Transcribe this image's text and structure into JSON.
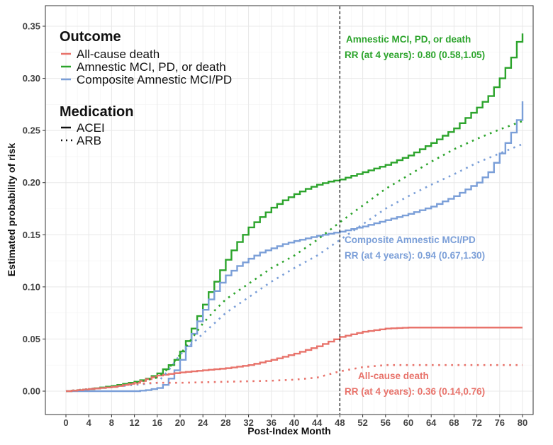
{
  "chart_data": {
    "type": "line",
    "xlabel": "Post-Index Month",
    "ylabel": "Estimated probability of risk",
    "xlim": [
      0,
      80
    ],
    "ylim": [
      0,
      0.35
    ],
    "xticks": [
      0,
      4,
      8,
      12,
      16,
      20,
      24,
      28,
      32,
      36,
      40,
      44,
      48,
      52,
      56,
      60,
      64,
      68,
      72,
      76,
      80
    ],
    "yticks": [
      "0.00",
      "0.05",
      "0.10",
      "0.15",
      "0.20",
      "0.25",
      "0.30",
      "0.35"
    ],
    "grid": true,
    "vline": 48,
    "legend": {
      "placement": "top-left",
      "outcome_title": "Outcome",
      "outcome_items": [
        "All-cause death",
        "Amnestic MCI, PD, or death",
        "Composite Amnestic MCI/PD"
      ],
      "medication_title": "Medication",
      "medication_items": [
        "ACEI",
        "ARB"
      ]
    },
    "colors": {
      "death": "#e8736b",
      "amnestic": "#2ca42c",
      "composite": "#7b9fd8"
    },
    "series": [
      {
        "name": "Amnestic MCI, PD, or death - ACEI",
        "outcome": "amnestic",
        "med": "ACEI",
        "x": [
          0,
          4,
          8,
          12,
          14,
          16,
          18,
          19,
          20,
          21,
          22,
          23,
          24,
          25,
          26,
          27,
          28,
          29,
          30,
          31,
          32,
          34,
          36,
          38,
          40,
          42,
          44,
          46,
          48,
          52,
          56,
          60,
          64,
          68,
          72,
          74,
          76,
          78,
          79,
          80
        ],
        "y": [
          0,
          0.002,
          0.005,
          0.009,
          0.012,
          0.017,
          0.025,
          0.03,
          0.038,
          0.048,
          0.06,
          0.072,
          0.083,
          0.095,
          0.105,
          0.116,
          0.126,
          0.135,
          0.143,
          0.15,
          0.157,
          0.167,
          0.176,
          0.183,
          0.189,
          0.194,
          0.198,
          0.201,
          0.203,
          0.21,
          0.217,
          0.226,
          0.238,
          0.252,
          0.272,
          0.283,
          0.3,
          0.32,
          0.335,
          0.343
        ]
      },
      {
        "name": "Composite Amnestic MCI/PD - ACEI",
        "outcome": "composite",
        "med": "ACEI",
        "x": [
          0,
          12,
          14,
          16,
          17,
          18,
          19,
          20,
          21,
          22,
          23,
          24,
          25,
          26,
          27,
          28,
          30,
          32,
          34,
          36,
          38,
          40,
          44,
          48,
          52,
          56,
          60,
          64,
          68,
          72,
          74,
          76,
          78,
          79,
          80
        ],
        "y": [
          0,
          0,
          0.001,
          0.003,
          0.006,
          0.012,
          0.02,
          0.03,
          0.043,
          0.055,
          0.067,
          0.078,
          0.088,
          0.096,
          0.104,
          0.111,
          0.12,
          0.127,
          0.133,
          0.137,
          0.141,
          0.144,
          0.149,
          0.153,
          0.158,
          0.164,
          0.17,
          0.177,
          0.187,
          0.2,
          0.21,
          0.228,
          0.248,
          0.26,
          0.278
        ]
      },
      {
        "name": "All-cause death - ACEI",
        "outcome": "death",
        "med": "ACEI",
        "x": [
          0,
          4,
          8,
          12,
          16,
          20,
          24,
          28,
          32,
          36,
          40,
          44,
          48,
          52,
          56,
          60,
          80
        ],
        "y": [
          0,
          0.002,
          0.004,
          0.008,
          0.015,
          0.018,
          0.02,
          0.022,
          0.025,
          0.03,
          0.036,
          0.043,
          0.052,
          0.057,
          0.06,
          0.061,
          0.061
        ]
      },
      {
        "name": "Amnestic MCI, PD, or death - ARB",
        "outcome": "amnestic",
        "med": "ARB",
        "x": [
          0,
          8,
          12,
          16,
          18,
          20,
          22,
          24,
          26,
          28,
          32,
          36,
          40,
          44,
          48,
          52,
          56,
          60,
          64,
          68,
          72,
          76,
          80
        ],
        "y": [
          0,
          0.004,
          0.008,
          0.013,
          0.022,
          0.035,
          0.05,
          0.065,
          0.077,
          0.088,
          0.103,
          0.118,
          0.13,
          0.145,
          0.162,
          0.178,
          0.194,
          0.207,
          0.22,
          0.232,
          0.242,
          0.251,
          0.259
        ]
      },
      {
        "name": "Composite Amnestic MCI/PD - ARB",
        "outcome": "composite",
        "med": "ARB",
        "x": [
          0,
          16,
          18,
          20,
          22,
          24,
          26,
          28,
          32,
          36,
          40,
          44,
          48,
          52,
          56,
          60,
          64,
          68,
          72,
          76,
          80
        ],
        "y": [
          0,
          0.008,
          0.02,
          0.035,
          0.045,
          0.055,
          0.065,
          0.075,
          0.09,
          0.105,
          0.118,
          0.13,
          0.145,
          0.16,
          0.175,
          0.187,
          0.198,
          0.208,
          0.219,
          0.228,
          0.237
        ]
      },
      {
        "name": "All-cause death - ARB",
        "outcome": "death",
        "med": "ARB",
        "x": [
          0,
          8,
          12,
          16,
          20,
          28,
          36,
          40,
          44,
          48,
          52,
          56,
          80
        ],
        "y": [
          0,
          0.004,
          0.007,
          0.008,
          0.008,
          0.009,
          0.01,
          0.011,
          0.013,
          0.019,
          0.023,
          0.025,
          0.025
        ]
      }
    ],
    "annotations": [
      {
        "outcome": "amnestic",
        "title": "Amnestic MCI, PD, or death",
        "rr": "RR (at 4 years): 0.80 (0.58,1.05)"
      },
      {
        "outcome": "composite",
        "title": "Composite Amnestic MCI/PD",
        "rr": "RR (at 4 years): 0.94 (0.67,1.30)"
      },
      {
        "outcome": "death",
        "title": "All-cause death",
        "rr": "RR (at 4 years): 0.36 (0.14,0.76)"
      }
    ]
  }
}
